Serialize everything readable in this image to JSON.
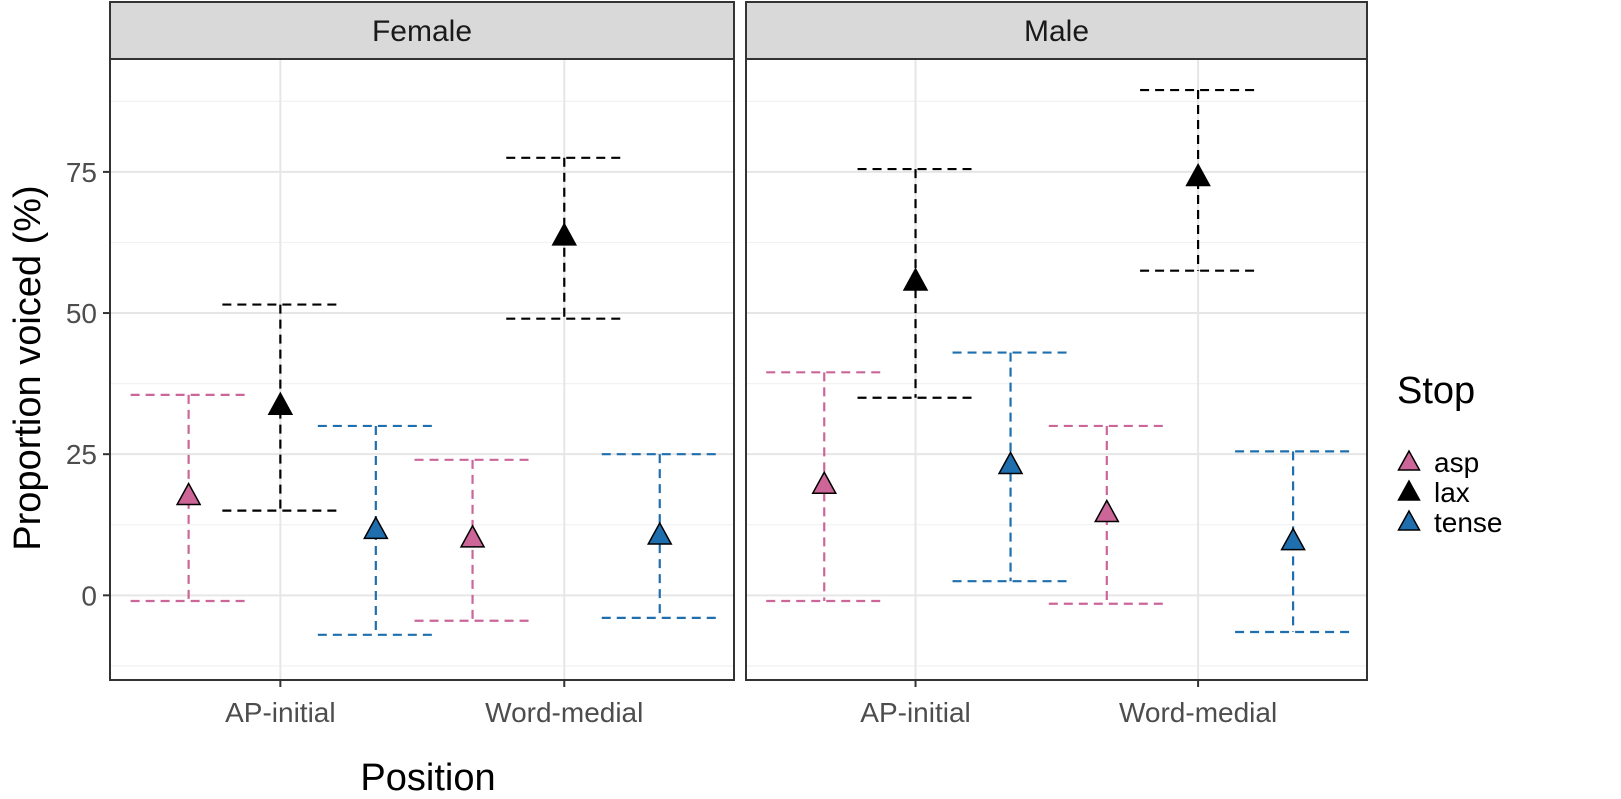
{
  "chart_data": {
    "type": "scatter",
    "xlabel": "Position",
    "ylabel": "Proportion voiced (%)",
    "ylim": [
      -15,
      95
    ],
    "yticks": [
      0,
      25,
      50,
      75
    ],
    "ytick_labels": [
      "0",
      "25",
      "50",
      "75"
    ],
    "categories": [
      "AP-initial",
      "Word-medial"
    ],
    "grid": true,
    "legend_position": "right",
    "legend_title": "Stop",
    "colors": {
      "asp": "#cc6699",
      "lax": "#000000",
      "tense": "#1f6fae"
    },
    "panels": [
      {
        "label": "Female",
        "series": [
          {
            "name": "asp",
            "points": [
              {
                "category": "AP-initial",
                "y": 17.5,
                "ymin": -1,
                "ymax": 35.5
              },
              {
                "category": "Word-medial",
                "y": 10,
                "ymin": -4.5,
                "ymax": 24
              }
            ]
          },
          {
            "name": "lax",
            "points": [
              {
                "category": "AP-initial",
                "y": 33.5,
                "ymin": 15,
                "ymax": 51.5
              },
              {
                "category": "Word-medial",
                "y": 63.5,
                "ymin": 49,
                "ymax": 77.5
              }
            ]
          },
          {
            "name": "tense",
            "points": [
              {
                "category": "AP-initial",
                "y": 11.5,
                "ymin": -7,
                "ymax": 30
              },
              {
                "category": "Word-medial",
                "y": 10.5,
                "ymin": -4,
                "ymax": 25
              }
            ]
          }
        ]
      },
      {
        "label": "Male",
        "series": [
          {
            "name": "asp",
            "points": [
              {
                "category": "AP-initial",
                "y": 19.5,
                "ymin": -1,
                "ymax": 39.5
              },
              {
                "category": "Word-medial",
                "y": 14.5,
                "ymin": -1.5,
                "ymax": 30
              }
            ]
          },
          {
            "name": "lax",
            "points": [
              {
                "category": "AP-initial",
                "y": 55.5,
                "ymin": 35,
                "ymax": 75.5
              },
              {
                "category": "Word-medial",
                "y": 74,
                "ymin": 57.5,
                "ymax": 89.5
              }
            ]
          },
          {
            "name": "tense",
            "points": [
              {
                "category": "AP-initial",
                "y": 23,
                "ymin": 2.5,
                "ymax": 43
              },
              {
                "category": "Word-medial",
                "y": 9.5,
                "ymin": -6.5,
                "ymax": 25.5
              }
            ]
          }
        ]
      }
    ]
  }
}
